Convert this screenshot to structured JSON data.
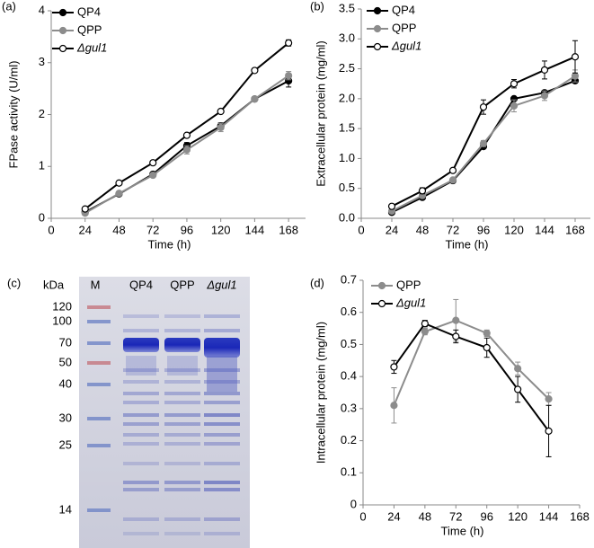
{
  "chart_data": [
    {
      "type": "line",
      "panel": "(a)",
      "y_label": "FPase activity (U/ml)",
      "x_label": "Time (h)",
      "x": [
        24,
        48,
        72,
        96,
        120,
        144,
        168
      ],
      "xlim": [
        0,
        180
      ],
      "xticks": [
        0,
        24,
        48,
        72,
        96,
        120,
        144,
        168
      ],
      "ylim": [
        0,
        4
      ],
      "yticks": [
        0,
        1,
        2,
        3,
        4
      ],
      "grid": false,
      "legend": "top-left",
      "series": [
        {
          "name": "QP4",
          "color": "#000000",
          "marker_fill": "#000000",
          "values": [
            0.12,
            0.47,
            0.85,
            1.4,
            1.78,
            2.3,
            2.65
          ],
          "errors": [
            0.02,
            0.03,
            0.03,
            0.06,
            0.06,
            0.04,
            0.12
          ]
        },
        {
          "name": "QPP",
          "color": "#8c8c8c",
          "marker_fill": "#8c8c8c",
          "values": [
            0.1,
            0.48,
            0.83,
            1.32,
            1.75,
            2.3,
            2.75
          ],
          "errors": [
            0.02,
            0.03,
            0.03,
            0.08,
            0.08,
            0.04,
            0.08
          ]
        },
        {
          "name": "Δgul1",
          "color": "#000000",
          "marker_fill": "#ffffff",
          "values": [
            0.18,
            0.68,
            1.07,
            1.6,
            2.06,
            2.85,
            3.38
          ],
          "errors": [
            0.02,
            0.02,
            0.02,
            0.03,
            0.03,
            0.03,
            0.06
          ]
        }
      ]
    },
    {
      "type": "line",
      "panel": "(b)",
      "y_label": "Extracellular protein (mg/ml)",
      "x_label": "Time (h)",
      "x": [
        24,
        48,
        72,
        96,
        120,
        144,
        168
      ],
      "xlim": [
        0,
        180
      ],
      "xticks": [
        0,
        24,
        48,
        72,
        96,
        120,
        144,
        168
      ],
      "ylim": [
        0,
        3.5
      ],
      "yticks": [
        {
          "value": 0,
          "label": "0.0"
        },
        {
          "value": 0.5,
          "label": "0.5"
        },
        {
          "value": 1,
          "label": "1.0"
        },
        {
          "value": 1.5,
          "label": "1.5"
        },
        {
          "value": 2,
          "label": "2.0"
        },
        {
          "value": 2.5,
          "label": "2.5"
        },
        {
          "value": 3,
          "label": "3.0"
        },
        {
          "value": 3.5,
          "label": "3.5"
        }
      ],
      "grid": false,
      "legend": "top-left",
      "series": [
        {
          "name": "QP4",
          "color": "#000000",
          "marker_fill": "#000000",
          "values": [
            0.1,
            0.35,
            0.63,
            1.2,
            2.0,
            2.1,
            2.3
          ],
          "errors": [
            0.02,
            0.03,
            0.02,
            0.03,
            0.03,
            0.04,
            0.04
          ]
        },
        {
          "name": "QPP",
          "color": "#8c8c8c",
          "marker_fill": "#8c8c8c",
          "values": [
            0.12,
            0.38,
            0.64,
            1.25,
            1.88,
            2.05,
            2.38
          ],
          "errors": [
            0.02,
            0.03,
            0.02,
            0.05,
            0.1,
            0.08,
            0.1
          ]
        },
        {
          "name": "Δgul1",
          "color": "#000000",
          "marker_fill": "#ffffff",
          "values": [
            0.2,
            0.46,
            0.8,
            1.86,
            2.25,
            2.48,
            2.7
          ],
          "errors": [
            0.03,
            0.05,
            0.03,
            0.12,
            0.07,
            0.15,
            0.27
          ]
        }
      ]
    },
    {
      "type": "line",
      "panel": "(d)",
      "y_label": "Intracellular protein (mg/ml)",
      "x_label": "Time (h)",
      "x": [
        24,
        48,
        72,
        96,
        120,
        144
      ],
      "xlim": [
        0,
        168
      ],
      "xticks": [
        0,
        24,
        48,
        72,
        96,
        120,
        144,
        168
      ],
      "ylim": [
        0,
        0.7
      ],
      "yticks": [
        0,
        0.1,
        0.2,
        0.3,
        0.4,
        0.5,
        0.6,
        0.7
      ],
      "grid": false,
      "legend": "top-left",
      "series": [
        {
          "name": "QPP",
          "color": "#8c8c8c",
          "marker_fill": "#8c8c8c",
          "values": [
            0.31,
            0.54,
            0.575,
            0.535,
            0.425,
            0.33
          ],
          "errors": [
            0.055,
            0.01,
            0.065,
            0.01,
            0.02,
            0.02
          ]
        },
        {
          "name": "Δgul1",
          "color": "#000000",
          "marker_fill": "#ffffff",
          "values": [
            0.43,
            0.565,
            0.525,
            0.49,
            0.36,
            0.23
          ],
          "errors": [
            0.02,
            0.01,
            0.02,
            0.03,
            0.04,
            0.08
          ]
        }
      ]
    }
  ],
  "gel": {
    "panel": "(c)",
    "unit": "kDa",
    "lanes": [
      "M",
      "QP4",
      "QPP",
      "Δgul1"
    ],
    "markers": [
      "120",
      "100",
      "70",
      "50",
      "40",
      "30",
      "25",
      "14"
    ]
  }
}
